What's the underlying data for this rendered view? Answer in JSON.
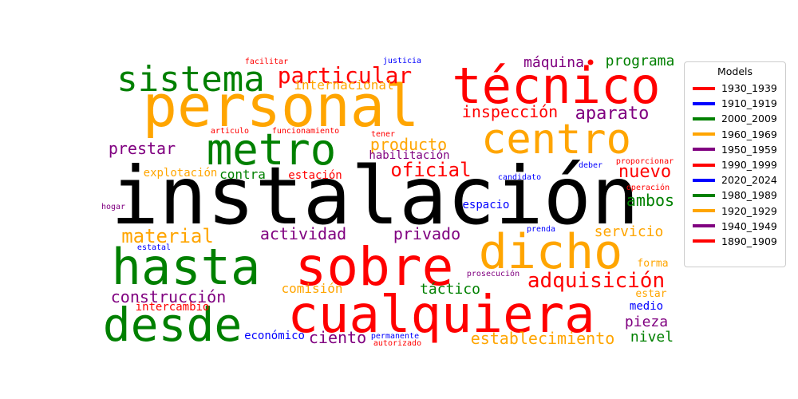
{
  "words": [
    {
      "text": "instalación",
      "color": "#000000"
    },
    {
      "text": "personal",
      "color": "#FFA500"
    },
    {
      "text": "técnico",
      "color": "#FF0000"
    },
    {
      "text": "cualquiera",
      "color": "#FF0000"
    },
    {
      "text": "sobre",
      "color": "#FF0000"
    },
    {
      "text": "hasta",
      "color": "#008000"
    },
    {
      "text": "desde",
      "color": "#008000"
    },
    {
      "text": "dicho",
      "color": "#FFA500"
    },
    {
      "text": "metro",
      "color": "#008000"
    },
    {
      "text": "centro",
      "color": "#FFA500"
    },
    {
      "text": "sistema",
      "color": "#008000"
    },
    {
      "text": "particular",
      "color": "#FF0000"
    },
    {
      "text": "internacional",
      "color": "#FFA500"
    },
    {
      "text": "máquina",
      "color": "#800080"
    },
    {
      "text": "programa",
      "color": "#008000"
    },
    {
      "text": "inspección",
      "color": "#FF0000"
    },
    {
      "text": "aparato",
      "color": "#800080"
    },
    {
      "text": "prestar",
      "color": "#800080"
    },
    {
      "text": "producto",
      "color": "#FFA500"
    },
    {
      "text": "habilitación",
      "color": "#800080"
    },
    {
      "text": "oficial",
      "color": "#FF0000"
    },
    {
      "text": "nuevo",
      "color": "#FF0000"
    },
    {
      "text": "explotación",
      "color": "#FFA500"
    },
    {
      "text": "contra",
      "color": "#008000"
    },
    {
      "text": "estación",
      "color": "#FF0000"
    },
    {
      "text": "ambos",
      "color": "#008000"
    },
    {
      "text": "material",
      "color": "#FFA500"
    },
    {
      "text": "actividad",
      "color": "#800080"
    },
    {
      "text": "privado",
      "color": "#800080"
    },
    {
      "text": "servicio",
      "color": "#FFA500"
    },
    {
      "text": "adquisición",
      "color": "#FF0000"
    },
    {
      "text": "construcción",
      "color": "#800080"
    },
    {
      "text": "comisión",
      "color": "#FFA500"
    },
    {
      "text": "táctico",
      "color": "#008000"
    },
    {
      "text": "pieza",
      "color": "#800080"
    },
    {
      "text": "ciento",
      "color": "#800080"
    },
    {
      "text": "establecimiento",
      "color": "#FFA500"
    },
    {
      "text": "nivel",
      "color": "#008000"
    },
    {
      "text": "espacio",
      "color": "#0000FF"
    },
    {
      "text": "medio",
      "color": "#0000FF"
    },
    {
      "text": "forma",
      "color": "#FFA500"
    },
    {
      "text": "estar",
      "color": "#FFA500"
    },
    {
      "text": "económico",
      "color": "#0000FF"
    },
    {
      "text": "intercambio",
      "color": "#FF0000"
    },
    {
      "text": "facilitar",
      "color": "#FF0000"
    },
    {
      "text": "justicia",
      "color": "#0000FF"
    },
    {
      "text": "articulo",
      "color": "#FF0000"
    },
    {
      "text": "funcionamiento",
      "color": "#FF0000"
    },
    {
      "text": "tener",
      "color": "#FF0000"
    },
    {
      "text": "candidato",
      "color": "#0000FF"
    },
    {
      "text": "deber",
      "color": "#0000FF"
    },
    {
      "text": "proporcionar",
      "color": "#FF0000"
    },
    {
      "text": "operación",
      "color": "#FF0000"
    },
    {
      "text": "hogar",
      "color": "#800080"
    },
    {
      "text": "estatal",
      "color": "#0000FF"
    },
    {
      "text": "prenda",
      "color": "#0000FF"
    },
    {
      "text": "prosecución",
      "color": "#800080"
    },
    {
      "text": "permanente",
      "color": "#0000FF"
    },
    {
      "text": "autorizado",
      "color": "#FF0000"
    }
  ],
  "legend": {
    "title": "Models",
    "items": [
      {
        "label": "1930_1939",
        "color": "#FF0000"
      },
      {
        "label": "1910_1919",
        "color": "#0000FF"
      },
      {
        "label": "2000_2009",
        "color": "#008000"
      },
      {
        "label": "1960_1969",
        "color": "#FFA500"
      },
      {
        "label": "1950_1959",
        "color": "#800080"
      },
      {
        "label": "1990_1999",
        "color": "#FF0000"
      },
      {
        "label": "2020_2024",
        "color": "#0000FF"
      },
      {
        "label": "1980_1989",
        "color": "#008000"
      },
      {
        "label": "1920_1929",
        "color": "#FFA500"
      },
      {
        "label": "1940_1949",
        "color": "#800080"
      },
      {
        "label": "1890_1909",
        "color": "#FF0000"
      }
    ]
  }
}
